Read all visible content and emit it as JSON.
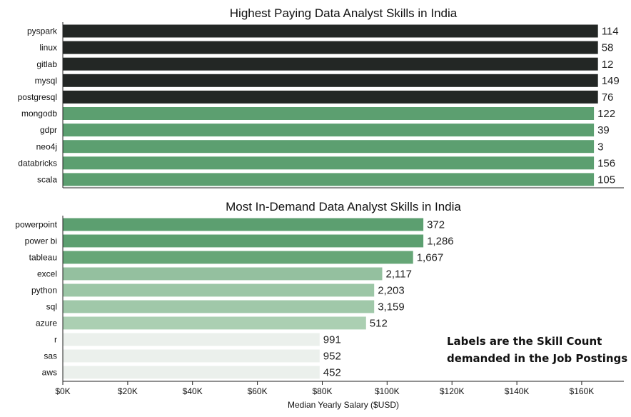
{
  "chart_data": [
    {
      "type": "bar",
      "orientation": "horizontal",
      "title": "Highest Paying Data Analyst Skills in India",
      "categories": [
        "pyspark",
        "linux",
        "gitlab",
        "mysql",
        "postgresql",
        "mongodb",
        "gdpr",
        "neo4j",
        "databricks",
        "scala"
      ],
      "values": [
        165000,
        165000,
        165000,
        165000,
        165000,
        163782,
        163782,
        163782,
        163782,
        163782
      ],
      "labels": [
        "114",
        "58",
        "12",
        "149",
        "76",
        "122",
        "39",
        "3",
        "156",
        "105"
      ],
      "colors": [
        "#232725",
        "#232725",
        "#232725",
        "#232725",
        "#232725",
        "#5c9f70",
        "#5c9f70",
        "#5c9f70",
        "#5c9f70",
        "#5c9f70"
      ],
      "xlim": [
        0,
        173000
      ],
      "xticks_shown": false,
      "grid": false
    },
    {
      "type": "bar",
      "orientation": "horizontal",
      "title": "Most In-Demand Data Analyst Skills in India",
      "categories": [
        "powerpoint",
        "power bi",
        "tableau",
        "excel",
        "python",
        "sql",
        "azure",
        "r",
        "sas",
        "aws"
      ],
      "values": [
        111175,
        111175,
        108000,
        98500,
        96000,
        96000,
        93500,
        79200,
        79200,
        79200
      ],
      "labels": [
        "372",
        "1,286",
        "1,667",
        "2,117",
        "2,203",
        "3,159",
        "512",
        "991",
        "952",
        "452"
      ],
      "colors": [
        "#5c9f70",
        "#5c9f70",
        "#66a677",
        "#94c09f",
        "#9cc6a6",
        "#a0c8a9",
        "#abcfb2",
        "#ebf0ec",
        "#ebf0ec",
        "#ebf0ec"
      ],
      "xlim": [
        0,
        173000
      ],
      "xticks": [
        0,
        20000,
        40000,
        60000,
        80000,
        100000,
        120000,
        140000,
        160000
      ],
      "xtick_labels": [
        "$0K",
        "$20K",
        "$40K",
        "$60K",
        "$80K",
        "$100K",
        "$120K",
        "$140K",
        "$160K"
      ],
      "xlabel": "Median Yearly Salary ($USD)",
      "grid": false
    }
  ],
  "annotation": {
    "line1": "Labels are the Skill Count",
    "line2": "demanded in the Job Postings"
  }
}
